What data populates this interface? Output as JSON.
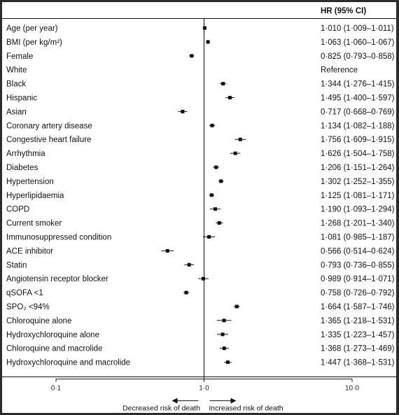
{
  "chart_data": {
    "type": "forest",
    "header": "HR (95% CI)",
    "x_scale": "log",
    "x_ticks": [
      {
        "value": 0.1,
        "label": "0·1"
      },
      {
        "value": 1.0,
        "label": "1·0"
      },
      {
        "value": 10.0,
        "label": "10·0"
      }
    ],
    "xlim": [
      0.1,
      10.0
    ],
    "reference_line": 1.0,
    "annotations": {
      "left": "Decreased risk of death",
      "right": "Increased risk of death"
    },
    "rows": [
      {
        "label": "Age (per year)",
        "hr": 1.01,
        "lo": 1.009,
        "hi": 1.011,
        "text": "1·010 (1·009–1·011)"
      },
      {
        "label": "BMI (per kg/m²)",
        "hr": 1.063,
        "lo": 1.06,
        "hi": 1.067,
        "text": "1·063 (1·060–1·067)"
      },
      {
        "label": "Female",
        "hr": 0.825,
        "lo": 0.793,
        "hi": 0.858,
        "text": "0·825 (0·793–0·858)"
      },
      {
        "label": "White",
        "hr": null,
        "lo": null,
        "hi": null,
        "text": "Reference"
      },
      {
        "label": "Black",
        "hr": 1.344,
        "lo": 1.276,
        "hi": 1.415,
        "text": "1·344 (1·276–1·415)"
      },
      {
        "label": "Hispanic",
        "hr": 1.495,
        "lo": 1.4,
        "hi": 1.597,
        "text": "1·495 (1·400–1·597)"
      },
      {
        "label": "Asian",
        "hr": 0.717,
        "lo": 0.668,
        "hi": 0.769,
        "text": "0·717 (0·668–0·769)"
      },
      {
        "label": "Coronary artery disease",
        "hr": 1.134,
        "lo": 1.082,
        "hi": 1.188,
        "text": "1·134 (1·082–1·188)"
      },
      {
        "label": "Congestive heart failure",
        "hr": 1.756,
        "lo": 1.609,
        "hi": 1.915,
        "text": "1·756 (1·609–1·915)"
      },
      {
        "label": "Arrhythmia",
        "hr": 1.626,
        "lo": 1.504,
        "hi": 1.758,
        "text": "1·626 (1·504–1·758)"
      },
      {
        "label": "Diabetes",
        "hr": 1.206,
        "lo": 1.151,
        "hi": 1.264,
        "text": "1·206 (1·151–1·264)"
      },
      {
        "label": "Hypertension",
        "hr": 1.302,
        "lo": 1.252,
        "hi": 1.355,
        "text": "1·302 (1·252–1·355)"
      },
      {
        "label": "Hyperlipidaemia",
        "hr": 1.125,
        "lo": 1.081,
        "hi": 1.171,
        "text": "1·125 (1·081–1·171)"
      },
      {
        "label": "COPD",
        "hr": 1.19,
        "lo": 1.093,
        "hi": 1.294,
        "text": "1·190 (1·093–1·294)"
      },
      {
        "label": "Current smoker",
        "hr": 1.268,
        "lo": 1.201,
        "hi": 1.34,
        "text": "1·268 (1·201–1·340)"
      },
      {
        "label": "Immunosuppressed condition",
        "hr": 1.081,
        "lo": 0.985,
        "hi": 1.187,
        "text": "1·081 (0·985–1·187)"
      },
      {
        "label": "ACE inhibitor",
        "hr": 0.566,
        "lo": 0.514,
        "hi": 0.624,
        "text": "0·566 (0·514–0·624)"
      },
      {
        "label": "Statin",
        "hr": 0.793,
        "lo": 0.736,
        "hi": 0.855,
        "text": "0·793 (0·736–0·855)"
      },
      {
        "label": "Angiotensin receptor blocker",
        "hr": 0.989,
        "lo": 0.914,
        "hi": 1.071,
        "text": "0·989 (0·914–1·071)"
      },
      {
        "label": "qSOFA <1",
        "hr": 0.758,
        "lo": 0.726,
        "hi": 0.792,
        "text": "0·758 (0·726–0·792)"
      },
      {
        "label": "SPO₂ <94%",
        "hr": 1.664,
        "lo": 1.587,
        "hi": 1.746,
        "text": "1·664 (1·587–1·746)"
      },
      {
        "label": "Chloroquine alone",
        "hr": 1.365,
        "lo": 1.218,
        "hi": 1.531,
        "text": "1·365 (1·218–1·531)"
      },
      {
        "label": "Hydroxychloroquine alone",
        "hr": 1.335,
        "lo": 1.223,
        "hi": 1.457,
        "text": "1·335 (1·223–1·457)"
      },
      {
        "label": "Chloroquine and macrolide",
        "hr": 1.368,
        "lo": 1.273,
        "hi": 1.469,
        "text": "1·368 (1·273–1·469)"
      },
      {
        "label": "Hydroxychloroquine and macrolide",
        "hr": 1.447,
        "lo": 1.368,
        "hi": 1.531,
        "text": "1·447 (1·368–1·531)"
      }
    ]
  }
}
